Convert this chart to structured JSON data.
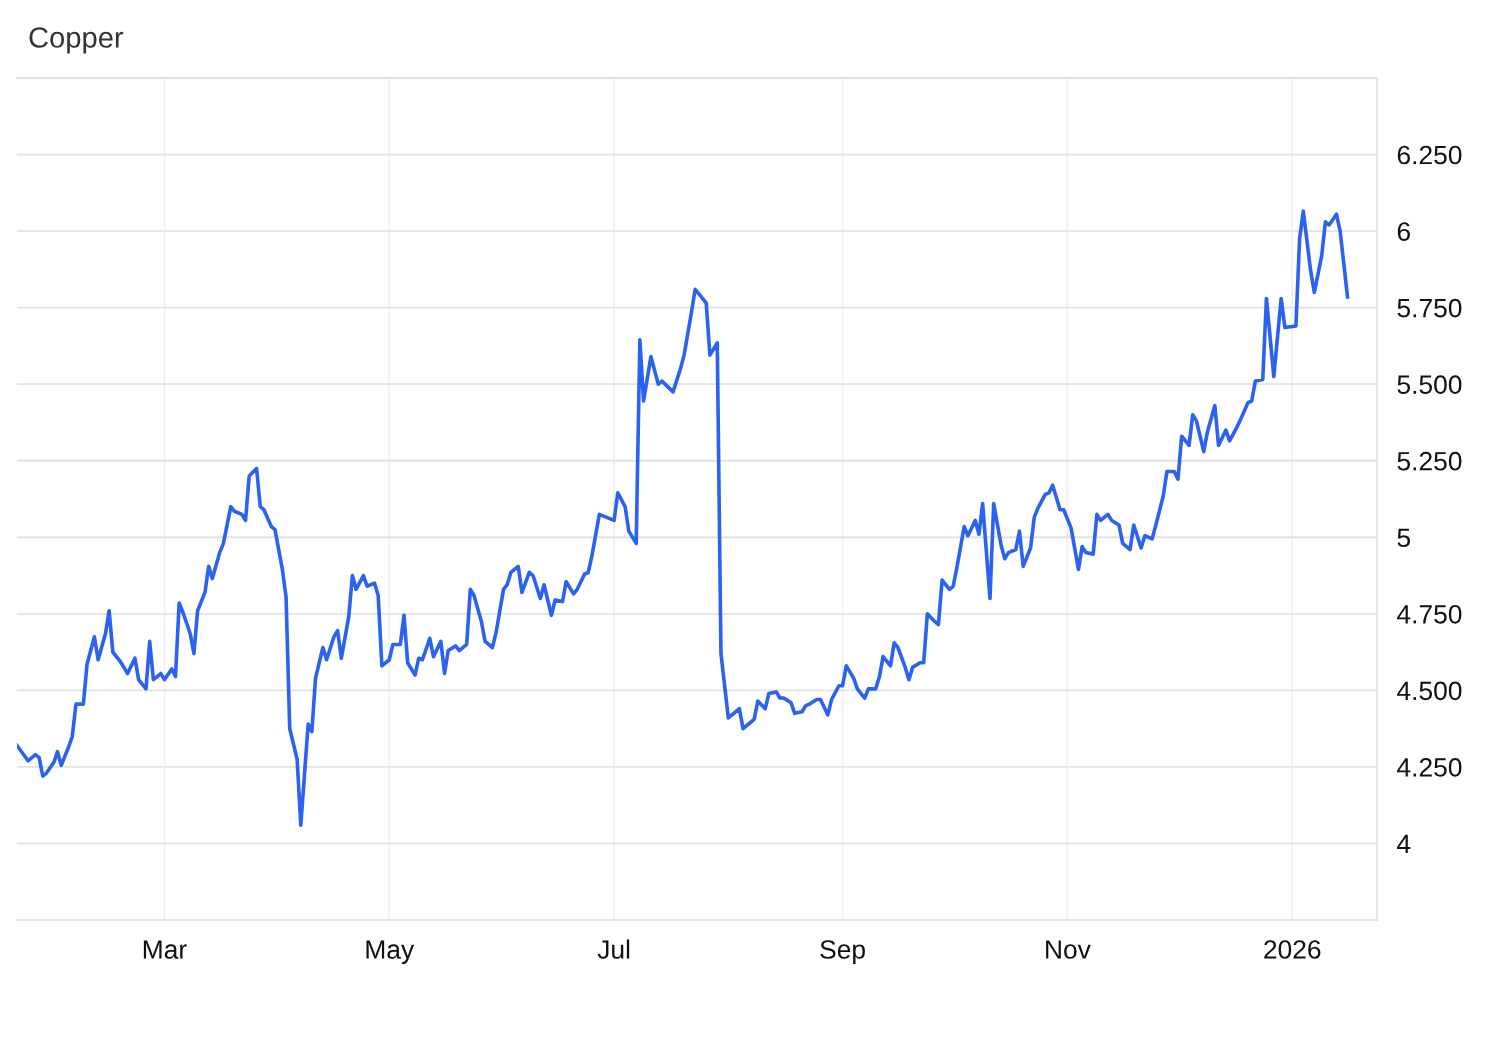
{
  "chart_data": {
    "type": "line",
    "title": "Copper",
    "x": [
      "2025-01-20",
      "2025-01-23",
      "2025-01-25",
      "2025-01-26",
      "2025-01-27",
      "2025-01-28",
      "2025-01-30",
      "2025-01-31",
      "2025-02-01",
      "2025-02-03",
      "2025-02-04",
      "2025-02-05",
      "2025-02-07",
      "2025-02-08",
      "2025-02-10",
      "2025-02-11",
      "2025-02-13",
      "2025-02-14",
      "2025-02-15",
      "2025-02-17",
      "2025-02-18",
      "2025-02-19",
      "2025-02-21",
      "2025-02-22",
      "2025-02-24",
      "2025-02-25",
      "2025-02-26",
      "2025-02-28",
      "2025-03-01",
      "2025-03-03",
      "2025-03-04",
      "2025-03-05",
      "2025-03-06",
      "2025-03-08",
      "2025-03-09",
      "2025-03-10",
      "2025-03-12",
      "2025-03-13",
      "2025-03-14",
      "2025-03-16",
      "2025-03-17",
      "2025-03-19",
      "2025-03-20",
      "2025-03-22",
      "2025-03-23",
      "2025-03-24",
      "2025-03-26",
      "2025-03-27",
      "2025-03-28",
      "2025-03-30",
      "2025-03-31",
      "2025-04-02",
      "2025-04-03",
      "2025-04-04",
      "2025-04-06",
      "2025-04-07",
      "2025-04-09",
      "2025-04-10",
      "2025-04-11",
      "2025-04-13",
      "2025-04-14",
      "2025-04-16",
      "2025-04-17",
      "2025-04-18",
      "2025-04-20",
      "2025-04-21",
      "2025-04-22",
      "2025-04-24",
      "2025-04-25",
      "2025-04-27",
      "2025-04-28",
      "2025-04-29",
      "2025-05-01",
      "2025-05-02",
      "2025-05-04",
      "2025-05-05",
      "2025-05-06",
      "2025-05-08",
      "2025-05-09",
      "2025-05-10",
      "2025-05-12",
      "2025-05-13",
      "2025-05-15",
      "2025-05-16",
      "2025-05-17",
      "2025-05-19",
      "2025-05-20",
      "2025-05-22",
      "2025-05-23",
      "2025-05-24",
      "2025-05-26",
      "2025-05-27",
      "2025-05-29",
      "2025-05-30",
      "2025-06-01",
      "2025-06-02",
      "2025-06-03",
      "2025-06-05",
      "2025-06-06",
      "2025-06-08",
      "2025-06-09",
      "2025-06-11",
      "2025-06-12",
      "2025-06-14",
      "2025-06-15",
      "2025-06-17",
      "2025-06-18",
      "2025-06-20",
      "2025-06-21",
      "2025-06-23",
      "2025-06-24",
      "2025-06-25",
      "2025-06-27",
      "2025-06-28",
      "2025-07-01",
      "2025-07-02",
      "2025-07-04",
      "2025-07-05",
      "2025-07-07",
      "2025-07-08",
      "2025-07-09",
      "2025-07-11",
      "2025-07-13",
      "2025-07-14",
      "2025-07-17",
      "2025-07-19",
      "2025-07-20",
      "2025-07-22",
      "2025-07-23",
      "2025-07-25",
      "2025-07-26",
      "2025-07-27",
      "2025-07-29",
      "2025-07-30",
      "2025-08-01",
      "2025-08-02",
      "2025-08-04",
      "2025-08-05",
      "2025-08-07",
      "2025-08-08",
      "2025-08-09",
      "2025-08-11",
      "2025-08-12",
      "2025-08-14",
      "2025-08-15",
      "2025-08-16",
      "2025-08-18",
      "2025-08-19",
      "2025-08-21",
      "2025-08-22",
      "2025-08-23",
      "2025-08-25",
      "2025-08-26",
      "2025-08-28",
      "2025-08-29",
      "2025-08-31",
      "2025-09-01",
      "2025-09-02",
      "2025-09-04",
      "2025-09-05",
      "2025-09-07",
      "2025-09-08",
      "2025-09-10",
      "2025-09-11",
      "2025-09-12",
      "2025-09-14",
      "2025-09-15",
      "2025-09-16",
      "2025-09-18",
      "2025-09-19",
      "2025-09-20",
      "2025-09-22",
      "2025-09-23",
      "2025-09-24",
      "2025-09-26",
      "2025-09-27",
      "2025-09-28",
      "2025-09-30",
      "2025-10-01",
      "2025-10-02",
      "2025-10-04",
      "2025-10-05",
      "2025-10-07",
      "2025-10-08",
      "2025-10-09",
      "2025-10-11",
      "2025-10-12",
      "2025-10-14",
      "2025-10-15",
      "2025-10-16",
      "2025-10-18",
      "2025-10-19",
      "2025-10-20",
      "2025-10-22",
      "2025-10-23",
      "2025-10-24",
      "2025-10-26",
      "2025-10-27",
      "2025-10-28",
      "2025-10-30",
      "2025-10-31",
      "2025-11-02",
      "2025-11-04",
      "2025-11-05",
      "2025-11-06",
      "2025-11-08",
      "2025-11-09",
      "2025-11-10",
      "2025-11-12",
      "2025-11-13",
      "2025-11-15",
      "2025-11-16",
      "2025-11-18",
      "2025-11-19",
      "2025-11-21",
      "2025-11-22",
      "2025-11-24",
      "2025-11-25",
      "2025-11-27",
      "2025-11-28",
      "2025-11-30",
      "2025-12-01",
      "2025-12-02",
      "2025-12-04",
      "2025-12-05",
      "2025-12-06",
      "2025-12-08",
      "2025-12-09",
      "2025-12-11",
      "2025-12-12",
      "2025-12-14",
      "2025-12-15",
      "2025-12-17",
      "2025-12-18",
      "2025-12-20",
      "2025-12-21",
      "2025-12-22",
      "2025-12-24",
      "2025-12-25",
      "2025-12-27",
      "2025-12-29",
      "2025-12-30",
      "2026-01-02",
      "2026-01-03",
      "2026-01-04",
      "2026-01-06",
      "2026-01-07",
      "2026-01-09",
      "2026-01-10",
      "2026-01-11",
      "2026-01-13",
      "2026-01-14",
      "2026-01-16"
    ],
    "series": [
      {
        "color": "#2b63f0",
        "values": [
          4.32,
          4.27,
          4.29,
          4.28,
          4.22,
          4.23,
          4.265,
          4.3,
          4.255,
          4.315,
          4.35,
          4.455,
          4.455,
          4.585,
          4.675,
          4.6,
          4.685,
          4.76,
          4.625,
          4.595,
          4.575,
          4.555,
          4.605,
          4.535,
          4.505,
          4.66,
          4.535,
          4.555,
          4.535,
          4.57,
          4.545,
          4.785,
          4.755,
          4.685,
          4.62,
          4.76,
          4.82,
          4.905,
          4.865,
          4.95,
          4.98,
          5.1,
          5.085,
          5.075,
          5.055,
          5.2,
          5.225,
          5.1,
          5.09,
          5.035,
          5.025,
          4.895,
          4.805,
          4.375,
          4.275,
          4.06,
          4.39,
          4.365,
          4.54,
          4.64,
          4.6,
          4.675,
          4.695,
          4.605,
          4.74,
          4.875,
          4.83,
          4.875,
          4.84,
          4.85,
          4.81,
          4.58,
          4.6,
          4.65,
          4.65,
          4.745,
          4.59,
          4.55,
          4.605,
          4.6,
          4.67,
          4.61,
          4.66,
          4.555,
          4.63,
          4.645,
          4.63,
          4.65,
          4.83,
          4.81,
          4.725,
          4.66,
          4.64,
          4.69,
          4.83,
          4.845,
          4.885,
          4.905,
          4.82,
          4.885,
          4.875,
          4.8,
          4.845,
          4.745,
          4.795,
          4.79,
          4.855,
          4.815,
          4.83,
          4.88,
          4.885,
          4.94,
          5.075,
          5.07,
          5.055,
          5.145,
          5.1,
          5.02,
          4.98,
          5.645,
          5.445,
          5.59,
          5.5,
          5.51,
          5.475,
          5.55,
          5.595,
          5.735,
          5.81,
          5.78,
          5.765,
          5.595,
          5.635,
          4.62,
          4.41,
          4.42,
          4.44,
          4.375,
          4.395,
          4.405,
          4.465,
          4.44,
          4.49,
          4.495,
          4.475,
          4.475,
          4.46,
          4.425,
          4.43,
          4.45,
          4.455,
          4.47,
          4.47,
          4.42,
          4.47,
          4.515,
          4.515,
          4.58,
          4.54,
          4.505,
          4.475,
          4.505,
          4.505,
          4.545,
          4.61,
          4.58,
          4.655,
          4.64,
          4.575,
          4.535,
          4.575,
          4.59,
          4.59,
          4.75,
          4.725,
          4.715,
          4.86,
          4.83,
          4.84,
          4.9,
          5.035,
          5.005,
          5.055,
          5.01,
          5.11,
          4.8,
          5.11,
          4.975,
          4.93,
          4.95,
          4.96,
          5.02,
          4.905,
          4.965,
          5.065,
          5.095,
          5.14,
          5.145,
          5.17,
          5.09,
          5.09,
          5.03,
          4.895,
          4.97,
          4.95,
          4.945,
          5.075,
          5.055,
          5.075,
          5.055,
          5.04,
          4.98,
          4.96,
          5.04,
          4.965,
          5.005,
          4.995,
          5.04,
          5.135,
          5.215,
          5.215,
          5.19,
          5.33,
          5.3,
          5.4,
          5.38,
          5.28,
          5.345,
          5.43,
          5.3,
          5.35,
          5.315,
          5.36,
          5.385,
          5.44,
          5.445,
          5.51,
          5.515,
          5.78,
          5.525,
          5.78,
          5.685,
          5.69,
          5.975,
          6.065,
          5.87,
          5.8,
          5.92,
          6.03,
          6.02,
          6.055,
          6.0,
          5.785
        ]
      }
    ],
    "xlim": [
      "2025-01-20",
      "2026-01-24"
    ],
    "xticks": [
      {
        "value": "2025-03-01",
        "label": "Mar"
      },
      {
        "value": "2025-05-01",
        "label": "May"
      },
      {
        "value": "2025-07-01",
        "label": "Jul"
      },
      {
        "value": "2025-09-01",
        "label": "Sep"
      },
      {
        "value": "2025-11-01",
        "label": "Nov"
      },
      {
        "value": "2026-01-01",
        "label": "2026"
      }
    ],
    "ylim": [
      3.75,
      6.5
    ],
    "yticks": [
      4,
      {
        "value": 4.25,
        "label": "4.250"
      },
      {
        "value": 4.5,
        "label": "4.500"
      },
      {
        "value": 4.75,
        "label": "4.750"
      },
      5,
      {
        "value": 5.25,
        "label": "5.250"
      },
      {
        "value": 5.5,
        "label": "5.500"
      },
      {
        "value": 5.75,
        "label": "5.750"
      },
      6,
      {
        "value": 6.25,
        "label": "6.250"
      }
    ],
    "grid": true,
    "line_style": "solid"
  }
}
